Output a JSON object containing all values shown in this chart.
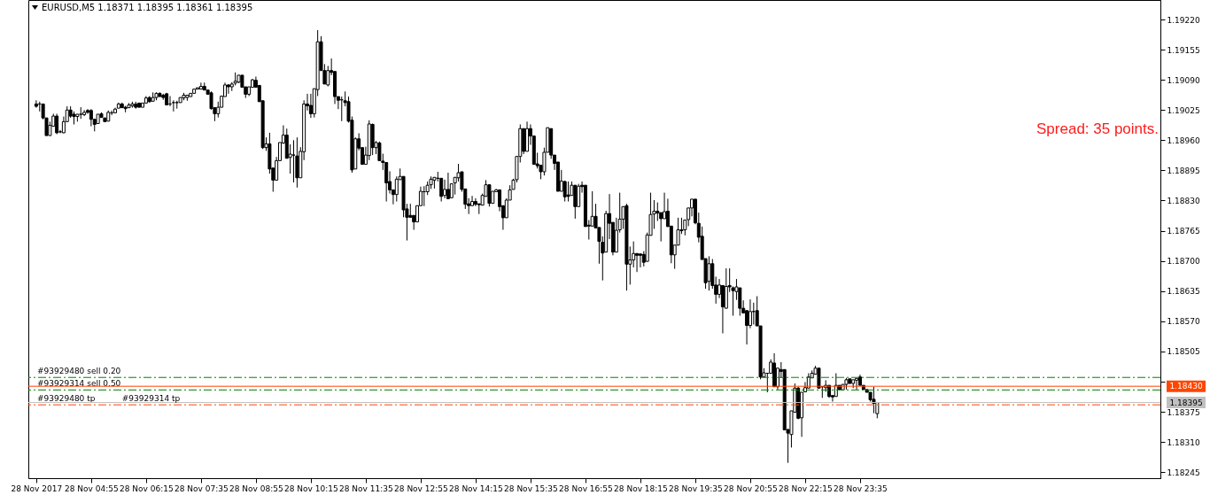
{
  "chart_data": {
    "type": "candlestick",
    "title": "EURUSD,M5 1.18371 1.18395 1.18361 1.18395",
    "color": "#000000",
    "annotations": [
      "Spread: 35 points.",
      {
        "text": "#93929314 tp",
        "x": "2017-11-28T05:40",
        "y": 1.1839
      }
    ],
    "x": [
      "2017-11-28T03:35",
      "2017-11-28T03:40",
      "2017-11-28T03:45",
      "2017-11-28T03:50",
      "2017-11-28T03:55",
      "2017-11-28T04:00",
      "2017-11-28T04:05",
      "2017-11-28T04:10",
      "2017-11-28T04:15",
      "2017-11-28T04:20",
      "2017-11-28T04:25",
      "2017-11-28T04:30",
      "2017-11-28T04:35",
      "2017-11-28T04:40",
      "2017-11-28T04:45",
      "2017-11-28T04:50",
      "2017-11-28T04:55",
      "2017-11-28T05:00",
      "2017-11-28T05:05",
      "2017-11-28T05:10",
      "2017-11-28T05:15",
      "2017-11-28T05:20",
      "2017-11-28T05:25",
      "2017-11-28T05:30",
      "2017-11-28T05:35",
      "2017-11-28T05:40",
      "2017-11-28T05:45",
      "2017-11-28T05:50",
      "2017-11-28T05:55",
      "2017-11-28T06:00",
      "2017-11-28T06:05",
      "2017-11-28T06:10",
      "2017-11-28T06:15",
      "2017-11-28T06:20",
      "2017-11-28T06:25",
      "2017-11-28T06:30",
      "2017-11-28T06:35",
      "2017-11-28T06:40",
      "2017-11-28T06:45",
      "2017-11-28T06:50",
      "2017-11-28T06:55",
      "2017-11-28T07:00",
      "2017-11-28T07:05",
      "2017-11-28T07:10",
      "2017-11-28T07:15",
      "2017-11-28T07:20",
      "2017-11-28T07:25",
      "2017-11-28T07:30",
      "2017-11-28T07:35",
      "2017-11-28T07:40",
      "2017-11-28T07:45",
      "2017-11-28T07:50",
      "2017-11-28T07:55",
      "2017-11-28T08:00",
      "2017-11-28T08:05",
      "2017-11-28T08:10",
      "2017-11-28T08:15",
      "2017-11-28T08:20",
      "2017-11-28T08:25",
      "2017-11-28T08:30",
      "2017-11-28T08:35",
      "2017-11-28T08:40",
      "2017-11-28T08:45",
      "2017-11-28T08:50",
      "2017-11-28T08:55",
      "2017-11-28T09:00",
      "2017-11-28T09:05",
      "2017-11-28T09:10",
      "2017-11-28T09:15",
      "2017-11-28T09:20",
      "2017-11-28T09:25",
      "2017-11-28T09:30",
      "2017-11-28T09:35",
      "2017-11-28T09:40",
      "2017-11-28T09:45",
      "2017-11-28T09:50",
      "2017-11-28T09:55",
      "2017-11-28T10:00",
      "2017-11-28T10:05",
      "2017-11-28T10:10",
      "2017-11-28T10:15",
      "2017-11-28T10:20",
      "2017-11-28T10:25",
      "2017-11-28T10:30",
      "2017-11-28T10:35",
      "2017-11-28T10:40",
      "2017-11-28T10:45",
      "2017-11-28T10:50",
      "2017-11-28T10:55",
      "2017-11-28T11:00",
      "2017-11-28T11:05",
      "2017-11-28T11:10",
      "2017-11-28T11:15",
      "2017-11-28T11:20",
      "2017-11-28T11:25",
      "2017-11-28T11:30",
      "2017-11-28T11:35",
      "2017-11-28T11:40",
      "2017-11-28T11:45",
      "2017-11-28T11:50",
      "2017-11-28T11:55",
      "2017-11-28T12:00",
      "2017-11-28T12:05",
      "2017-11-28T12:10",
      "2017-11-28T12:15",
      "2017-11-28T12:20",
      "2017-11-28T12:25",
      "2017-11-28T12:30",
      "2017-11-28T12:35",
      "2017-11-28T12:40",
      "2017-11-28T12:45",
      "2017-11-28T12:50",
      "2017-11-28T12:55",
      "2017-11-28T13:00",
      "2017-11-28T13:05",
      "2017-11-28T13:10",
      "2017-11-28T13:15",
      "2017-11-28T13:20",
      "2017-11-28T13:25",
      "2017-11-28T13:30",
      "2017-11-28T13:35",
      "2017-11-28T13:40",
      "2017-11-28T13:45",
      "2017-11-28T13:50",
      "2017-11-28T13:55",
      "2017-11-28T14:00",
      "2017-11-28T14:05",
      "2017-11-28T14:10",
      "2017-11-28T14:15",
      "2017-11-28T14:20",
      "2017-11-28T14:25",
      "2017-11-28T14:30",
      "2017-11-28T14:35",
      "2017-11-28T14:40",
      "2017-11-28T14:45",
      "2017-11-28T14:50",
      "2017-11-28T14:55",
      "2017-11-28T15:00",
      "2017-11-28T15:05",
      "2017-11-28T15:10",
      "2017-11-28T15:15",
      "2017-11-28T15:20",
      "2017-11-28T15:25",
      "2017-11-28T15:30",
      "2017-11-28T15:35",
      "2017-11-28T15:40",
      "2017-11-28T15:45",
      "2017-11-28T15:50",
      "2017-11-28T15:55",
      "2017-11-28T16:00",
      "2017-11-28T16:05",
      "2017-11-28T16:10",
      "2017-11-28T16:15",
      "2017-11-28T16:20",
      "2017-11-28T16:25",
      "2017-11-28T16:30",
      "2017-11-28T16:35",
      "2017-11-28T16:40",
      "2017-11-28T16:45",
      "2017-11-28T16:50",
      "2017-11-28T16:55",
      "2017-11-28T17:00",
      "2017-11-28T17:05",
      "2017-11-28T17:10",
      "2017-11-28T17:15",
      "2017-11-28T17:20",
      "2017-11-28T17:25",
      "2017-11-28T17:30",
      "2017-11-28T17:35",
      "2017-11-28T17:40",
      "2017-11-28T17:45",
      "2017-11-28T17:50",
      "2017-11-28T17:55",
      "2017-11-28T18:00",
      "2017-11-28T18:05",
      "2017-11-28T18:10",
      "2017-11-28T18:15",
      "2017-11-28T18:20",
      "2017-11-28T18:25",
      "2017-11-28T18:30",
      "2017-11-28T18:35",
      "2017-11-28T18:40",
      "2017-11-28T18:45",
      "2017-11-28T18:50",
      "2017-11-28T18:55",
      "2017-11-28T19:00",
      "2017-11-28T19:05",
      "2017-11-28T19:10",
      "2017-11-28T19:15",
      "2017-11-28T19:20",
      "2017-11-28T19:25",
      "2017-11-28T19:30",
      "2017-11-28T19:35",
      "2017-11-28T19:40",
      "2017-11-28T19:45",
      "2017-11-28T19:50",
      "2017-11-28T19:55",
      "2017-11-28T20:00",
      "2017-11-28T20:05",
      "2017-11-28T20:10",
      "2017-11-28T20:15",
      "2017-11-28T20:20",
      "2017-11-28T20:25",
      "2017-11-28T20:30",
      "2017-11-28T20:35",
      "2017-11-28T20:40",
      "2017-11-28T20:45",
      "2017-11-28T20:50",
      "2017-11-28T20:55",
      "2017-11-28T21:00",
      "2017-11-28T21:05",
      "2017-11-28T21:10",
      "2017-11-28T21:15",
      "2017-11-28T21:20",
      "2017-11-28T21:25",
      "2017-11-28T21:30",
      "2017-11-28T21:35",
      "2017-11-28T21:40",
      "2017-11-28T21:45",
      "2017-11-28T21:50",
      "2017-11-28T21:55",
      "2017-11-28T22:00",
      "2017-11-28T22:05",
      "2017-11-28T22:10",
      "2017-11-28T22:15",
      "2017-11-28T22:20",
      "2017-11-28T22:25",
      "2017-11-28T22:30",
      "2017-11-28T22:35",
      "2017-11-28T22:40",
      "2017-11-28T22:45",
      "2017-11-28T22:50",
      "2017-11-28T22:55",
      "2017-11-28T23:00",
      "2017-11-28T23:05",
      "2017-11-28T23:10",
      "2017-11-28T23:15",
      "2017-11-28T23:20",
      "2017-11-28T23:25",
      "2017-11-28T23:30",
      "2017-11-28T23:35",
      "2017-11-28T23:40",
      "2017-11-28T23:45",
      "2017-11-28T23:50",
      "2017-11-28T23:55",
      "2017-11-29T00:00"
    ],
    "ohlc": [
      [
        1.19038,
        1.19046,
        1.1903,
        1.19033
      ],
      [
        1.19038,
        1.19043,
        1.19022,
        1.19038
      ],
      [
        1.19038,
        1.19038,
        1.19005,
        1.19008
      ],
      [
        1.19008,
        1.19008,
        1.1897,
        1.1897
      ],
      [
        1.1897,
        1.19,
        1.1897,
        1.18992
      ],
      [
        1.1899,
        1.19017,
        1.1899,
        1.19012
      ],
      [
        1.19012,
        1.19017,
        1.18973,
        1.18976
      ],
      [
        1.18978,
        1.18982,
        1.18975,
        1.18978
      ],
      [
        1.18976,
        1.19011,
        1.18975,
        1.19
      ],
      [
        1.19,
        1.19033,
        1.19,
        1.19025
      ],
      [
        1.19025,
        1.19033,
        1.19008,
        1.19012
      ],
      [
        1.19016,
        1.19022,
        1.18994,
        1.19011
      ],
      [
        1.19011,
        1.19016,
        1.19,
        1.19016
      ],
      [
        1.19016,
        1.19031,
        1.19006,
        1.19016
      ],
      [
        1.19015,
        1.19025,
        1.19012,
        1.1902
      ],
      [
        1.19024,
        1.19027,
        1.19017,
        1.1902
      ],
      [
        1.19024,
        1.19027,
        1.1899,
        1.19005
      ],
      [
        1.19005,
        1.19005,
        1.18979,
        1.18994
      ],
      [
        1.18996,
        1.19016,
        1.18996,
        1.19016
      ],
      [
        1.19017,
        1.1902,
        1.19009,
        1.19009
      ],
      [
        1.19008,
        1.19008,
        1.19,
        1.19
      ],
      [
        1.19001,
        1.19024,
        1.19001,
        1.1902
      ],
      [
        1.19019,
        1.19024,
        1.19014,
        1.19019
      ],
      [
        1.19019,
        1.1903,
        1.19019,
        1.19027
      ],
      [
        1.19029,
        1.19041,
        1.19029,
        1.19038
      ],
      [
        1.19038,
        1.19041,
        1.1903,
        1.1903
      ],
      [
        1.19031,
        1.19034,
        1.1902,
        1.19028
      ],
      [
        1.1903,
        1.1904,
        1.1903,
        1.19036
      ],
      [
        1.19034,
        1.19043,
        1.1903,
        1.19038
      ],
      [
        1.19038,
        1.19043,
        1.19028,
        1.19031
      ],
      [
        1.1904,
        1.1904,
        1.19031,
        1.19031
      ],
      [
        1.19031,
        1.1904,
        1.19031,
        1.1904
      ],
      [
        1.1904,
        1.19055,
        1.1904,
        1.19051
      ],
      [
        1.19052,
        1.19055,
        1.19041,
        1.19043
      ],
      [
        1.19044,
        1.19063,
        1.19044,
        1.19052
      ],
      [
        1.19052,
        1.19063,
        1.19046,
        1.19061
      ],
      [
        1.19061,
        1.19063,
        1.19054,
        1.19054
      ],
      [
        1.19057,
        1.1906,
        1.19047,
        1.19052
      ],
      [
        1.1906,
        1.19062,
        1.19036,
        1.19036
      ],
      [
        1.19038,
        1.19055,
        1.19033,
        1.19038
      ],
      [
        1.19041,
        1.19046,
        1.19022,
        1.19041
      ],
      [
        1.19041,
        1.19045,
        1.19028,
        1.19041
      ],
      [
        1.19041,
        1.19052,
        1.19041,
        1.19052
      ],
      [
        1.19051,
        1.19062,
        1.19046,
        1.19057
      ],
      [
        1.19052,
        1.19057,
        1.19045,
        1.19057
      ],
      [
        1.19054,
        1.19061,
        1.19054,
        1.19061
      ],
      [
        1.19061,
        1.1907,
        1.19061,
        1.1907
      ],
      [
        1.1907,
        1.19073,
        1.1907,
        1.19073
      ],
      [
        1.1907,
        1.19084,
        1.1907,
        1.19076
      ],
      [
        1.19076,
        1.19084,
        1.19068,
        1.19068
      ],
      [
        1.19068,
        1.19068,
        1.19059,
        1.19059
      ],
      [
        1.19062,
        1.19065,
        1.19026,
        1.19028
      ],
      [
        1.1903,
        1.1903,
        1.19001,
        1.19017
      ],
      [
        1.19017,
        1.19043,
        1.19009,
        1.19031
      ],
      [
        1.19031,
        1.19055,
        1.19031,
        1.19055
      ],
      [
        1.19054,
        1.19084,
        1.19054,
        1.19079
      ],
      [
        1.19079,
        1.19081,
        1.1906,
        1.19075
      ],
      [
        1.19075,
        1.19085,
        1.19066,
        1.19081
      ],
      [
        1.19083,
        1.19106,
        1.19078,
        1.19087
      ],
      [
        1.19085,
        1.191,
        1.19083,
        1.191
      ],
      [
        1.191,
        1.191,
        1.19074,
        1.19074
      ],
      [
        1.19075,
        1.19075,
        1.19051,
        1.19059
      ],
      [
        1.19059,
        1.19075,
        1.19055,
        1.19075
      ],
      [
        1.19074,
        1.19092,
        1.19074,
        1.1909
      ],
      [
        1.19089,
        1.19097,
        1.19074,
        1.19074
      ],
      [
        1.19078,
        1.19079,
        1.19043,
        1.19043
      ],
      [
        1.19045,
        1.19045,
        1.18941,
        1.18944
      ],
      [
        1.18944,
        1.18966,
        1.18937,
        1.18952
      ],
      [
        1.18952,
        1.18976,
        1.18888,
        1.18898
      ],
      [
        1.189,
        1.189,
        1.18849,
        1.18874
      ],
      [
        1.18874,
        1.18924,
        1.18874,
        1.18916
      ],
      [
        1.18916,
        1.18955,
        1.18916,
        1.18955
      ],
      [
        1.18954,
        1.18992,
        1.18952,
        1.18971
      ],
      [
        1.18971,
        1.18985,
        1.18921,
        1.18921
      ],
      [
        1.18923,
        1.18951,
        1.18888,
        1.1893
      ],
      [
        1.18928,
        1.1896,
        1.18869,
        1.18928
      ],
      [
        1.18926,
        1.18966,
        1.18858,
        1.18879
      ],
      [
        1.18879,
        1.18945,
        1.18879,
        1.18936
      ],
      [
        1.18935,
        1.19046,
        1.18917,
        1.19038
      ],
      [
        1.19038,
        1.1906,
        1.19024,
        1.19034
      ],
      [
        1.19035,
        1.1906,
        1.19008,
        1.19017
      ],
      [
        1.19017,
        1.19071,
        1.19009,
        1.19071
      ],
      [
        1.19069,
        1.19197,
        1.19055,
        1.19172
      ],
      [
        1.19172,
        1.19184,
        1.1911,
        1.1911
      ],
      [
        1.1911,
        1.19124,
        1.19081,
        1.19081
      ],
      [
        1.19079,
        1.1912,
        1.19076,
        1.1911
      ],
      [
        1.1911,
        1.19136,
        1.191,
        1.19106
      ],
      [
        1.19108,
        1.19108,
        1.19038,
        1.19054
      ],
      [
        1.19054,
        1.19054,
        1.19027,
        1.19046
      ],
      [
        1.19047,
        1.19054,
        1.19001,
        1.19047
      ],
      [
        1.19045,
        1.19065,
        1.19033,
        1.19041
      ],
      [
        1.19043,
        1.19054,
        1.18998,
        1.19001
      ],
      [
        1.19003,
        1.19011,
        1.1889,
        1.18896
      ],
      [
        1.18898,
        1.18966,
        1.18898,
        1.18963
      ],
      [
        1.18963,
        1.18975,
        1.18938,
        1.18943
      ],
      [
        1.18944,
        1.18944,
        1.18908,
        1.18908
      ],
      [
        1.18908,
        1.18946,
        1.18908,
        1.18928
      ],
      [
        1.18927,
        1.19003,
        1.18917,
        1.18995
      ],
      [
        1.18994,
        1.18996,
        1.18928,
        1.18944
      ],
      [
        1.18944,
        1.18958,
        1.1893,
        1.18955
      ],
      [
        1.18954,
        1.18957,
        1.18916,
        1.18916
      ],
      [
        1.18915,
        1.18931,
        1.18896,
        1.18912
      ],
      [
        1.18912,
        1.18912,
        1.18828,
        1.18868
      ],
      [
        1.18871,
        1.18893,
        1.18845,
        1.18853
      ],
      [
        1.18853,
        1.18853,
        1.18822,
        1.18843
      ],
      [
        1.18843,
        1.18882,
        1.18828,
        1.18876
      ],
      [
        1.18875,
        1.18899,
        1.18875,
        1.18882
      ],
      [
        1.18882,
        1.18882,
        1.18794,
        1.1881
      ],
      [
        1.18812,
        1.18823,
        1.18744,
        1.18794
      ],
      [
        1.18798,
        1.18823,
        1.18794,
        1.18794
      ],
      [
        1.18798,
        1.18798,
        1.18767,
        1.18784
      ],
      [
        1.18784,
        1.18819,
        1.18784,
        1.18819
      ],
      [
        1.18819,
        1.1886,
        1.18819,
        1.1885
      ],
      [
        1.18849,
        1.18861,
        1.18818,
        1.18849
      ],
      [
        1.18849,
        1.18871,
        1.18842,
        1.18863
      ],
      [
        1.18864,
        1.18882,
        1.18855,
        1.18876
      ],
      [
        1.18874,
        1.1888,
        1.18856,
        1.1888
      ],
      [
        1.18878,
        1.18892,
        1.18871,
        1.18878
      ],
      [
        1.18878,
        1.18878,
        1.18828,
        1.18839
      ],
      [
        1.18841,
        1.18875,
        1.18835,
        1.18854
      ],
      [
        1.18854,
        1.1889,
        1.18834,
        1.18834
      ],
      [
        1.18836,
        1.18866,
        1.18836,
        1.18866
      ],
      [
        1.18868,
        1.1888,
        1.18843,
        1.1888
      ],
      [
        1.18879,
        1.18909,
        1.18871,
        1.1889
      ],
      [
        1.18892,
        1.18892,
        1.18849,
        1.18854
      ],
      [
        1.18855,
        1.18855,
        1.18812,
        1.18822
      ],
      [
        1.18823,
        1.18835,
        1.18801,
        1.18819
      ],
      [
        1.18819,
        1.1884,
        1.18819,
        1.18828
      ],
      [
        1.18828,
        1.18835,
        1.18818,
        1.18822
      ],
      [
        1.18823,
        1.18823,
        1.18801,
        1.18821
      ],
      [
        1.1882,
        1.18845,
        1.1882,
        1.18841
      ],
      [
        1.18839,
        1.18874,
        1.18839,
        1.18864
      ],
      [
        1.18864,
        1.18864,
        1.18817,
        1.18824
      ],
      [
        1.18824,
        1.1885,
        1.18824,
        1.1885
      ],
      [
        1.18849,
        1.18855,
        1.18849,
        1.18853
      ],
      [
        1.18853,
        1.18853,
        1.18807,
        1.18817
      ],
      [
        1.18819,
        1.18819,
        1.18767,
        1.18793
      ],
      [
        1.18793,
        1.18835,
        1.18793,
        1.18831
      ],
      [
        1.18831,
        1.18863,
        1.18831,
        1.18853
      ],
      [
        1.18854,
        1.18877,
        1.18854,
        1.18874
      ],
      [
        1.18875,
        1.18925,
        1.18869,
        1.18925
      ],
      [
        1.18925,
        1.18994,
        1.18912,
        1.18985
      ],
      [
        1.18985,
        1.18985,
        1.1893,
        1.18936
      ],
      [
        1.18936,
        1.19,
        1.18936,
        1.18985
      ],
      [
        1.18985,
        1.18994,
        1.1895,
        1.18969
      ],
      [
        1.18969,
        1.18969,
        1.18908,
        1.18908
      ],
      [
        1.18909,
        1.18933,
        1.18899,
        1.18905
      ],
      [
        1.18906,
        1.18906,
        1.18876,
        1.18892
      ],
      [
        1.18892,
        1.18944,
        1.18884,
        1.18934
      ],
      [
        1.18934,
        1.18987,
        1.18934,
        1.18987
      ],
      [
        1.18985,
        1.18985,
        1.1892,
        1.18928
      ],
      [
        1.18928,
        1.18928,
        1.18896,
        1.1891
      ],
      [
        1.18913,
        1.18913,
        1.1885,
        1.1885
      ],
      [
        1.1885,
        1.18896,
        1.1885,
        1.18872
      ],
      [
        1.18871,
        1.18873,
        1.18828,
        1.18838
      ],
      [
        1.18842,
        1.18871,
        1.18828,
        1.18839
      ],
      [
        1.18841,
        1.18871,
        1.18841,
        1.18863
      ],
      [
        1.18863,
        1.18863,
        1.18791,
        1.18817
      ],
      [
        1.18817,
        1.18866,
        1.18817,
        1.18861
      ],
      [
        1.18863,
        1.18871,
        1.18847,
        1.1886
      ],
      [
        1.18863,
        1.18863,
        1.18774,
        1.18774
      ],
      [
        1.18777,
        1.18788,
        1.18746,
        1.18775
      ],
      [
        1.18775,
        1.1885,
        1.18775,
        1.18796
      ],
      [
        1.18796,
        1.18823,
        1.18771,
        1.18771
      ],
      [
        1.18772,
        1.18772,
        1.18694,
        1.18742
      ],
      [
        1.1874,
        1.18753,
        1.18658,
        1.18717
      ],
      [
        1.18719,
        1.18808,
        1.18719,
        1.18802
      ],
      [
        1.18802,
        1.18844,
        1.18747,
        1.18781
      ],
      [
        1.18783,
        1.18783,
        1.18712,
        1.18719
      ],
      [
        1.18719,
        1.18793,
        1.18719,
        1.18766
      ],
      [
        1.18767,
        1.18847,
        1.18761,
        1.1879
      ],
      [
        1.1879,
        1.18817,
        1.18769,
        1.18817
      ],
      [
        1.18819,
        1.18823,
        1.18636,
        1.18693
      ],
      [
        1.18693,
        1.18731,
        1.18649,
        1.18702
      ],
      [
        1.18702,
        1.18742,
        1.18686,
        1.18716
      ],
      [
        1.18716,
        1.18716,
        1.18676,
        1.18712
      ],
      [
        1.18715,
        1.18715,
        1.18686,
        1.18712
      ],
      [
        1.18714,
        1.18721,
        1.18688,
        1.18697
      ],
      [
        1.18699,
        1.18761,
        1.18699,
        1.18756
      ],
      [
        1.18755,
        1.18847,
        1.18755,
        1.188
      ],
      [
        1.18801,
        1.18831,
        1.18769,
        1.18807
      ],
      [
        1.18807,
        1.18826,
        1.18786,
        1.18803
      ],
      [
        1.18804,
        1.18804,
        1.18742,
        1.18791
      ],
      [
        1.18791,
        1.18847,
        1.18791,
        1.18806
      ],
      [
        1.18807,
        1.18834,
        1.18774,
        1.18774
      ],
      [
        1.18775,
        1.18775,
        1.18695,
        1.18713
      ],
      [
        1.18713,
        1.18734,
        1.18683,
        1.18734
      ],
      [
        1.18734,
        1.18793,
        1.18734,
        1.18767
      ],
      [
        1.18767,
        1.18793,
        1.18758,
        1.18765
      ],
      [
        1.18767,
        1.18788,
        1.18755,
        1.18788
      ],
      [
        1.18789,
        1.18814,
        1.18775,
        1.18814
      ],
      [
        1.18814,
        1.18833,
        1.18796,
        1.18833
      ],
      [
        1.18833,
        1.18833,
        1.18779,
        1.18782
      ],
      [
        1.18781,
        1.18804,
        1.1874,
        1.18751
      ],
      [
        1.18753,
        1.18774,
        1.18703,
        1.18703
      ],
      [
        1.18705,
        1.18705,
        1.1864,
        1.18653
      ],
      [
        1.18656,
        1.1871,
        1.18636,
        1.18694
      ],
      [
        1.18694,
        1.18704,
        1.1864,
        1.18647
      ],
      [
        1.18648,
        1.18666,
        1.18608,
        1.18628
      ],
      [
        1.18628,
        1.18661,
        1.1862,
        1.18648
      ],
      [
        1.18647,
        1.18647,
        1.18544,
        1.18601
      ],
      [
        1.18598,
        1.18684,
        1.18598,
        1.18645
      ],
      [
        1.18647,
        1.18684,
        1.18633,
        1.18644
      ],
      [
        1.18642,
        1.18645,
        1.18582,
        1.18636
      ],
      [
        1.18634,
        1.18661,
        1.18616,
        1.18644
      ],
      [
        1.18642,
        1.18642,
        1.18582,
        1.18598
      ],
      [
        1.18598,
        1.18615,
        1.18587,
        1.18588
      ],
      [
        1.18593,
        1.18593,
        1.1852,
        1.18561
      ],
      [
        1.18561,
        1.18617,
        1.18555,
        1.18591
      ],
      [
        1.18591,
        1.1861,
        1.18563,
        1.18591
      ],
      [
        1.18593,
        1.18624,
        1.1856,
        1.1856
      ],
      [
        1.1856,
        1.1856,
        1.18445,
        1.1845
      ],
      [
        1.1845,
        1.18469,
        1.1845,
        1.18459
      ],
      [
        1.18458,
        1.18458,
        1.18417,
        1.18458
      ],
      [
        1.18458,
        1.18488,
        1.18458,
        1.18482
      ],
      [
        1.1848,
        1.18501,
        1.18429,
        1.18429
      ],
      [
        1.18429,
        1.18469,
        1.18423,
        1.18469
      ],
      [
        1.18466,
        1.18482,
        1.18448,
        1.18462
      ],
      [
        1.18466,
        1.18466,
        1.18336,
        1.18336
      ],
      [
        1.18337,
        1.18337,
        1.18265,
        1.18329
      ],
      [
        1.18326,
        1.18377,
        1.18298,
        1.18377
      ],
      [
        1.18374,
        1.18436,
        1.18374,
        1.18426
      ],
      [
        1.18426,
        1.18429,
        1.18359,
        1.18361
      ],
      [
        1.18362,
        1.18417,
        1.18321,
        1.18417
      ],
      [
        1.18418,
        1.18439,
        1.18418,
        1.18427
      ],
      [
        1.18426,
        1.18458,
        1.18426,
        1.1845
      ],
      [
        1.18448,
        1.18464,
        1.18448,
        1.18458
      ],
      [
        1.18456,
        1.18474,
        1.18456,
        1.18469
      ],
      [
        1.18469,
        1.18469,
        1.18426,
        1.18426
      ],
      [
        1.18429,
        1.18429,
        1.18405,
        1.18429
      ],
      [
        1.18427,
        1.18443,
        1.18418,
        1.18432
      ],
      [
        1.18432,
        1.18432,
        1.18405,
        1.18408
      ],
      [
        1.1841,
        1.1841,
        1.18397,
        1.18407
      ],
      [
        1.18408,
        1.18458,
        1.18408,
        1.18432
      ],
      [
        1.18432,
        1.18432,
        1.18423,
        1.18423
      ],
      [
        1.18422,
        1.18434,
        1.18422,
        1.18434
      ],
      [
        1.18434,
        1.18448,
        1.18423,
        1.18444
      ],
      [
        1.18446,
        1.18446,
        1.18436,
        1.18436
      ],
      [
        1.18436,
        1.18444,
        1.18426,
        1.18444
      ],
      [
        1.18443,
        1.18447,
        1.18423,
        1.18447
      ],
      [
        1.1845,
        1.18455,
        1.18432,
        1.18432
      ],
      [
        1.18432,
        1.18432,
        1.18423,
        1.18423
      ],
      [
        1.18423,
        1.18423,
        1.18417,
        1.18417
      ],
      [
        1.18417,
        1.18417,
        1.18397,
        1.18401
      ],
      [
        1.18402,
        1.18429,
        1.18372,
        1.18393
      ],
      [
        1.18371,
        1.18395,
        1.18361,
        1.18395
      ]
    ],
    "xlim": [
      "2017-11-28T03:30",
      "2017-11-29T06:46"
    ],
    "xticks": [
      {
        "value": "2017-11-28T03:35",
        "label": "28 Nov 2017"
      },
      {
        "value": "2017-11-28T04:55",
        "label": "28 Nov 04:55"
      },
      {
        "value": "2017-11-28T06:15",
        "label": "28 Nov 06:15"
      },
      {
        "value": "2017-11-28T07:35",
        "label": "28 Nov 07:35"
      },
      {
        "value": "2017-11-28T08:55",
        "label": "28 Nov 08:55"
      },
      {
        "value": "2017-11-28T10:15",
        "label": "28 Nov 10:15"
      },
      {
        "value": "2017-11-28T11:35",
        "label": "28 Nov 11:35"
      },
      {
        "value": "2017-11-28T12:55",
        "label": "28 Nov 12:55"
      },
      {
        "value": "2017-11-28T14:15",
        "label": "28 Nov 14:15"
      },
      {
        "value": "2017-11-28T15:35",
        "label": "28 Nov 15:35"
      },
      {
        "value": "2017-11-28T16:55",
        "label": "28 Nov 16:55"
      },
      {
        "value": "2017-11-28T18:15",
        "label": "28 Nov 18:15"
      },
      {
        "value": "2017-11-28T19:35",
        "label": "28 Nov 19:35"
      },
      {
        "value": "2017-11-28T20:55",
        "label": "28 Nov 20:55"
      },
      {
        "value": "2017-11-28T22:15",
        "label": "28 Nov 22:15"
      },
      {
        "value": "2017-11-28T23:35",
        "label": "28 Nov 23:35"
      }
    ],
    "ylim": [
      1.18232,
      1.19262
    ],
    "yticks": [
      {
        "value": 1.18245,
        "label": "1.18245"
      },
      {
        "value": 1.1831,
        "label": "1.18310"
      },
      {
        "value": 1.18375,
        "label": "1.18375"
      },
      {
        "value": 1.1844,
        "label": null
      },
      {
        "value": 1.18505,
        "label": "1.18505"
      },
      {
        "value": 1.1857,
        "label": "1.18570"
      },
      {
        "value": 1.18635,
        "label": "1.18635"
      },
      {
        "value": 1.187,
        "label": "1.18700"
      },
      {
        "value": 1.18765,
        "label": "1.18765"
      },
      {
        "value": 1.1883,
        "label": "1.18830"
      },
      {
        "value": 1.18895,
        "label": "1.18895"
      },
      {
        "value": 1.1896,
        "label": "1.18960"
      },
      {
        "value": 1.19025,
        "label": "1.19025"
      },
      {
        "value": 1.1909,
        "label": "1.19090"
      },
      {
        "value": 1.19155,
        "label": "1.19155"
      },
      {
        "value": 1.1922,
        "label": "1.19220"
      }
    ],
    "ref_lines": [
      {
        "axis": "y",
        "value": 1.18449,
        "label": "#93929480 sell 0.20",
        "color": "#008000",
        "line_style": "dashed"
      },
      {
        "axis": "y",
        "value": 1.18422,
        "label": "#93929314 sell 0.50",
        "color": "#008000",
        "line_style": "dashed"
      },
      {
        "axis": "y",
        "value": 1.1839,
        "label": "#93929480 tp",
        "color": "#ff4500",
        "line_style": "dashed"
      },
      {
        "axis": "y",
        "value": 1.1843,
        "label": "1.18430",
        "color": "#ff4500",
        "line_style": "solid"
      },
      {
        "axis": "y",
        "value": 1.18395,
        "label": "1.18395",
        "color": "#c0c0c0",
        "line_style": "solid"
      }
    ]
  }
}
